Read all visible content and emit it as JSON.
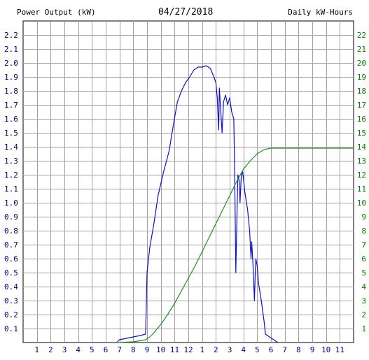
{
  "header": {
    "left_title": "Power Output (kW)",
    "date": "04/27/2018",
    "right_title": "Daily kW-Hours"
  },
  "colors": {
    "power": "#1010c8",
    "energy": "#209020",
    "grid": "#a0a0a0",
    "axis_text": "#000080",
    "right_text": "#008000"
  },
  "chart_data": {
    "type": "line",
    "date": "04/27/2018",
    "xlabel": "",
    "ylabel_left": "Power Output (kW)",
    "ylabel_right": "Daily kW-Hours",
    "x_tick_labels": [
      "1",
      "2",
      "3",
      "4",
      "5",
      "6",
      "7",
      "8",
      "9",
      "10",
      "11",
      "12",
      "1",
      "2",
      "3",
      "4",
      "5",
      "6",
      "7",
      "8",
      "9",
      "10",
      "11"
    ],
    "y_left_ticks": [
      "0.1",
      "0.2",
      "0.3",
      "0.4",
      "0.5",
      "0.6",
      "0.7",
      "0.8",
      "0.9",
      "1.0",
      "1.1",
      "1.2",
      "1.3",
      "1.4",
      "1.5",
      "1.6",
      "1.7",
      "1.8",
      "1.9",
      "2.0",
      "2.1",
      "2.2"
    ],
    "y_right_ticks": [
      "1",
      "2",
      "3",
      "4",
      "5",
      "6",
      "7",
      "8",
      "9",
      "10",
      "11",
      "12",
      "13",
      "14",
      "15",
      "16",
      "17",
      "18",
      "19",
      "20",
      "21",
      "22"
    ],
    "xlim_hours": [
      0,
      24
    ],
    "ylim_left": [
      0,
      2.3
    ],
    "ylim_right": [
      0,
      23
    ],
    "grid": true,
    "series": [
      {
        "name": "Power Output (kW)",
        "axis": "left",
        "points": [
          [
            6.8,
            0.0
          ],
          [
            7.0,
            0.02
          ],
          [
            7.5,
            0.03
          ],
          [
            8.0,
            0.04
          ],
          [
            8.5,
            0.05
          ],
          [
            8.9,
            0.06
          ],
          [
            9.0,
            0.5
          ],
          [
            9.2,
            0.68
          ],
          [
            9.5,
            0.85
          ],
          [
            9.8,
            1.05
          ],
          [
            10.2,
            1.22
          ],
          [
            10.6,
            1.37
          ],
          [
            10.9,
            1.55
          ],
          [
            11.2,
            1.72
          ],
          [
            11.5,
            1.8
          ],
          [
            11.8,
            1.86
          ],
          [
            12.1,
            1.9
          ],
          [
            12.4,
            1.95
          ],
          [
            12.7,
            1.97
          ],
          [
            13.0,
            1.97
          ],
          [
            13.3,
            1.98
          ],
          [
            13.6,
            1.96
          ],
          [
            13.85,
            1.9
          ],
          [
            14.0,
            1.86
          ],
          [
            14.1,
            1.75
          ],
          [
            14.2,
            1.52
          ],
          [
            14.25,
            1.82
          ],
          [
            14.35,
            1.66
          ],
          [
            14.45,
            1.5
          ],
          [
            14.55,
            1.72
          ],
          [
            14.7,
            1.77
          ],
          [
            14.85,
            1.7
          ],
          [
            15.0,
            1.75
          ],
          [
            15.15,
            1.65
          ],
          [
            15.3,
            1.6
          ],
          [
            15.35,
            1.3
          ],
          [
            15.4,
            0.9
          ],
          [
            15.45,
            0.5
          ],
          [
            15.55,
            1.0
          ],
          [
            15.6,
            1.2
          ],
          [
            15.7,
            1.15
          ],
          [
            15.75,
            1.0
          ],
          [
            15.85,
            1.2
          ],
          [
            15.95,
            1.22
          ],
          [
            16.1,
            1.08
          ],
          [
            16.3,
            0.95
          ],
          [
            16.45,
            0.8
          ],
          [
            16.55,
            0.6
          ],
          [
            16.6,
            0.72
          ],
          [
            16.7,
            0.55
          ],
          [
            16.8,
            0.3
          ],
          [
            16.85,
            0.48
          ],
          [
            16.9,
            0.6
          ],
          [
            17.0,
            0.55
          ],
          [
            17.1,
            0.42
          ],
          [
            17.3,
            0.3
          ],
          [
            17.5,
            0.15
          ],
          [
            17.6,
            0.06
          ],
          [
            17.9,
            0.04
          ],
          [
            18.2,
            0.02
          ],
          [
            18.5,
            0.0
          ]
        ]
      },
      {
        "name": "Daily kW-Hours",
        "axis": "right",
        "points": [
          [
            6.8,
            0.0
          ],
          [
            8.0,
            0.05
          ],
          [
            8.9,
            0.2
          ],
          [
            9.2,
            0.4
          ],
          [
            9.5,
            0.7
          ],
          [
            10.0,
            1.3
          ],
          [
            10.5,
            2.0
          ],
          [
            11.0,
            2.8
          ],
          [
            11.5,
            3.7
          ],
          [
            12.0,
            4.6
          ],
          [
            12.5,
            5.5
          ],
          [
            13.0,
            6.5
          ],
          [
            13.5,
            7.5
          ],
          [
            14.0,
            8.5
          ],
          [
            14.5,
            9.5
          ],
          [
            15.0,
            10.5
          ],
          [
            15.5,
            11.5
          ],
          [
            16.0,
            12.4
          ],
          [
            16.5,
            13.0
          ],
          [
            17.0,
            13.5
          ],
          [
            17.5,
            13.8
          ],
          [
            18.0,
            13.9
          ],
          [
            18.5,
            13.9
          ],
          [
            24.0,
            13.9
          ]
        ]
      }
    ]
  }
}
